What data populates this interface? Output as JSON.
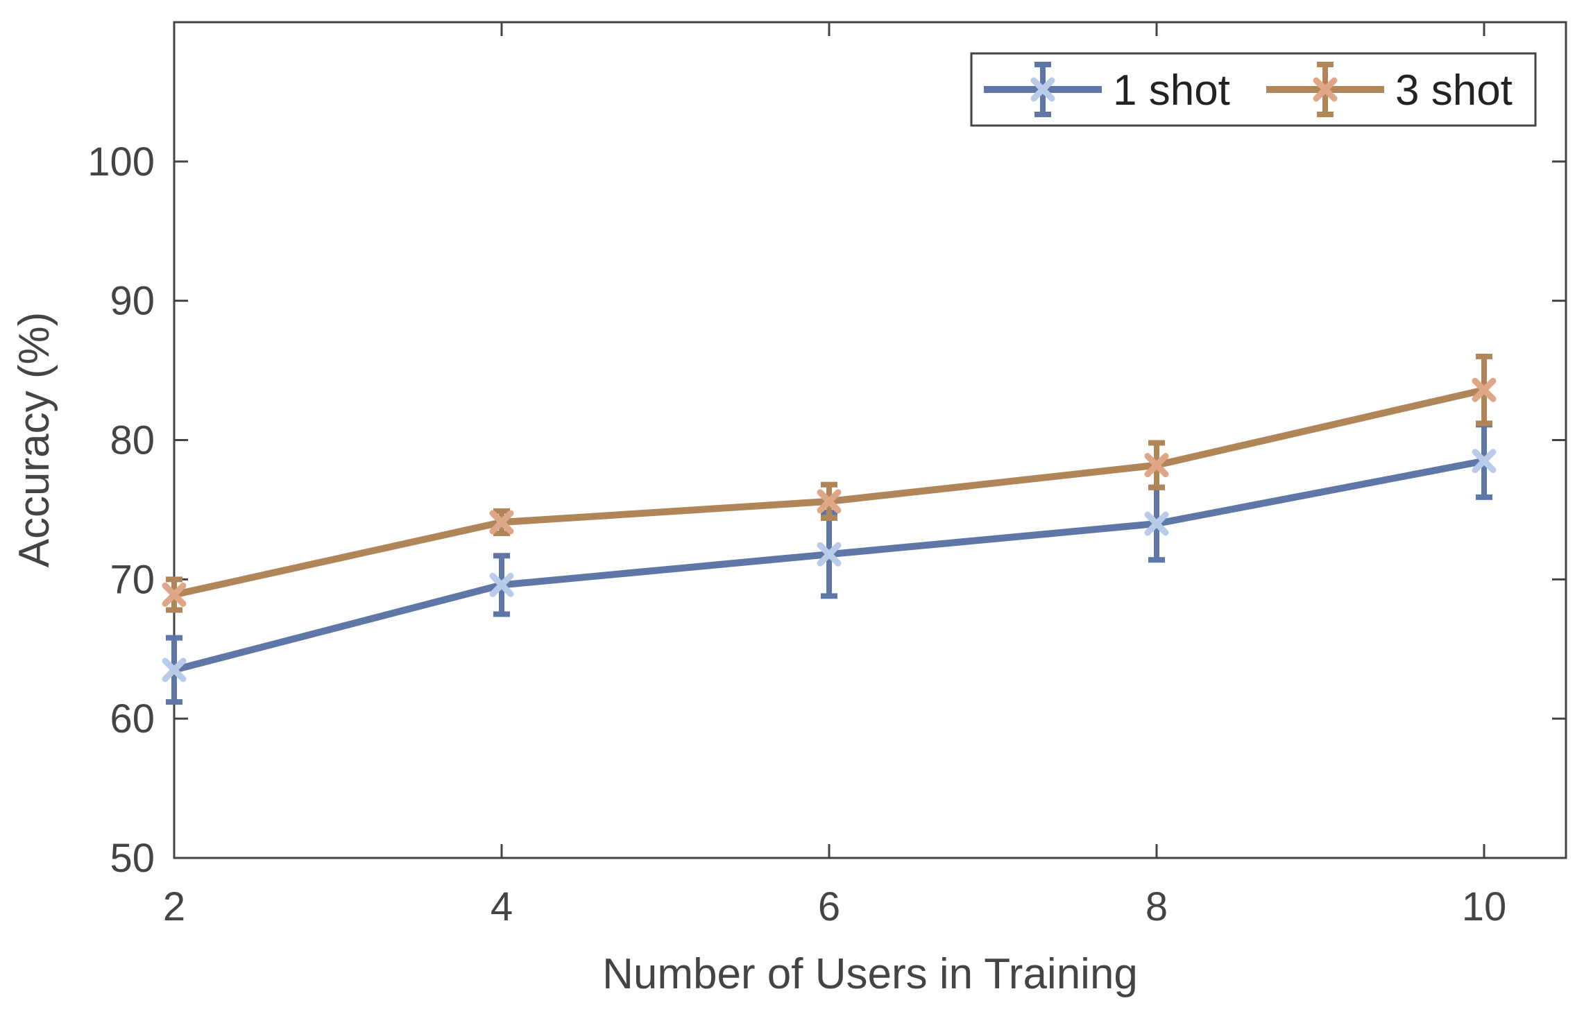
{
  "chart_data": {
    "type": "line",
    "title": "",
    "xlabel": "Number of Users in Training",
    "ylabel": "Accuracy (%)",
    "x": [
      2,
      4,
      6,
      8,
      10
    ],
    "xlim": [
      2,
      10.5
    ],
    "ylim": [
      50,
      110
    ],
    "xticks": [
      2,
      4,
      6,
      8,
      10
    ],
    "yticks": [
      50,
      60,
      70,
      80,
      90,
      100
    ],
    "grid": false,
    "legend_position": "top-right",
    "series": [
      {
        "name": "1 shot",
        "values": [
          63.5,
          69.6,
          71.8,
          74.0,
          78.5
        ],
        "error": [
          2.3,
          2.1,
          3.0,
          2.6,
          2.6
        ],
        "line_color": "#5f77a6",
        "marker_color": "#b8cbe8"
      },
      {
        "name": "3 shot",
        "values": [
          68.9,
          74.1,
          75.6,
          78.2,
          83.6
        ],
        "error": [
          1.1,
          0.8,
          1.2,
          1.6,
          2.4
        ],
        "line_color": "#b08659",
        "marker_color": "#dfa787"
      }
    ]
  }
}
